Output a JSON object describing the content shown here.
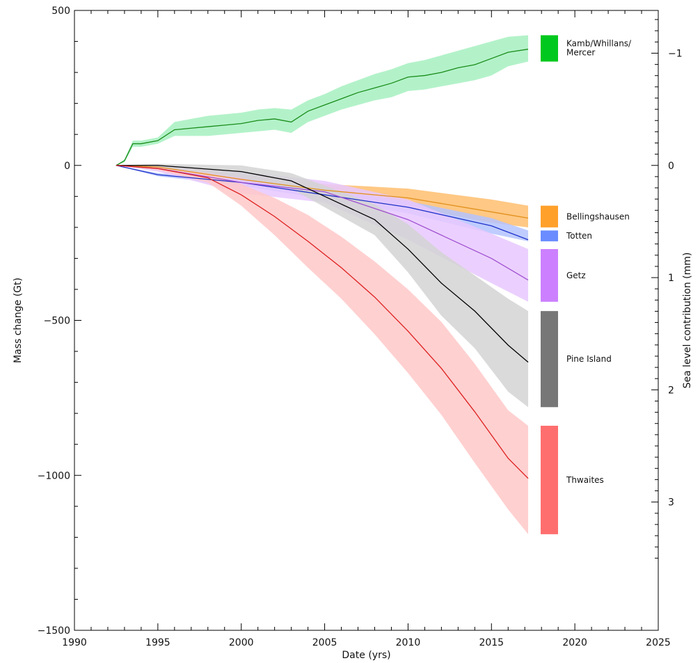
{
  "chart_data": {
    "type": "line",
    "title": "",
    "xlabel": "Date (yrs)",
    "ylabel": "Mass change (Gt)",
    "y2label": "Sea level contribution (mm)",
    "xlim": [
      1990,
      2025
    ],
    "ylim": [
      -1500,
      500
    ],
    "x_ticks": [
      1990,
      1995,
      2000,
      2005,
      2010,
      2015,
      2020,
      2025
    ],
    "y_ticks": [
      500,
      0,
      -500,
      -1000,
      -1500
    ],
    "y2_ticks": [
      -1,
      0,
      1,
      2,
      3
    ],
    "y2_per_gt": -0.002762,
    "grid": false,
    "legend_position": "right",
    "series": [
      {
        "name": "Kamb/Whillans/Mercer",
        "color": "#1a8c1a",
        "band_color": "#a6f0c0",
        "legend_color": "#00c81e",
        "x": [
          1992.5,
          1993,
          1993.5,
          1994,
          1995,
          1996,
          1997,
          1998,
          1999,
          2000,
          2001,
          2002,
          2003,
          2004,
          2005,
          2006,
          2007,
          2008,
          2009,
          2010,
          2011,
          2012,
          2013,
          2014,
          2015,
          2016,
          2017.2
        ],
        "y": [
          0,
          15,
          70,
          70,
          80,
          115,
          120,
          125,
          130,
          135,
          145,
          150,
          140,
          175,
          195,
          215,
          235,
          250,
          265,
          285,
          290,
          300,
          315,
          325,
          345,
          365,
          375
        ],
        "upper": [
          0,
          20,
          80,
          80,
          90,
          140,
          150,
          160,
          165,
          170,
          180,
          185,
          180,
          210,
          230,
          255,
          275,
          295,
          310,
          330,
          340,
          355,
          370,
          385,
          400,
          415,
          420
        ],
        "lower": [
          0,
          10,
          60,
          60,
          70,
          95,
          95,
          95,
          100,
          105,
          110,
          115,
          105,
          140,
          160,
          180,
          195,
          210,
          220,
          240,
          245,
          255,
          265,
          275,
          290,
          320,
          335
        ]
      },
      {
        "name": "Bellingshausen",
        "color": "#e0901a",
        "band_color": "#ffbe6e",
        "legend_color": "#ffa02a",
        "x": [
          1992.5,
          1995,
          2000,
          2005,
          2010,
          2015,
          2017.2
        ],
        "y": [
          0,
          -5,
          -45,
          -80,
          -105,
          -150,
          -170
        ],
        "upper": [
          0,
          0,
          -30,
          -60,
          -75,
          -110,
          -130
        ],
        "lower": [
          0,
          -10,
          -60,
          -100,
          -135,
          -185,
          -200
        ]
      },
      {
        "name": "Totten",
        "color": "#1e32c8",
        "band_color": "#b4c3ff",
        "legend_color": "#6a8cff",
        "x": [
          1992.5,
          1995,
          2000,
          2005,
          2010,
          2015,
          2017.2
        ],
        "y": [
          0,
          -30,
          -55,
          -95,
          -135,
          -195,
          -240
        ],
        "upper": [
          0,
          -25,
          -45,
          -80,
          -115,
          -170,
          -210
        ],
        "lower": [
          0,
          -35,
          -65,
          -110,
          -155,
          -220,
          -245
        ]
      },
      {
        "name": "Getz",
        "color": "#a050d0",
        "band_color": "#e8c8ff",
        "legend_color": "#cc80ff",
        "x": [
          1992.5,
          1995,
          2000,
          2005,
          2010,
          2015,
          2017.2
        ],
        "y": [
          0,
          -10,
          -55,
          -85,
          -175,
          -300,
          -370
        ],
        "upper": [
          0,
          0,
          -20,
          -50,
          -110,
          -220,
          -270
        ],
        "lower": [
          0,
          -20,
          -90,
          -120,
          -240,
          -380,
          -440
        ]
      },
      {
        "name": "Pine Island",
        "color": "#000000",
        "band_color": "#d4d4d4",
        "legend_color": "#777777",
        "x": [
          1992.5,
          1995,
          2000,
          2003,
          2005,
          2008,
          2010,
          2012,
          2014,
          2016,
          2017.2
        ],
        "y": [
          0,
          0,
          -20,
          -50,
          -100,
          -175,
          -270,
          -380,
          -470,
          -580,
          -635
        ],
        "upper": [
          0,
          5,
          0,
          -25,
          -65,
          -125,
          -190,
          -280,
          -355,
          -430,
          -470
        ],
        "lower": [
          0,
          -5,
          -40,
          -75,
          -135,
          -225,
          -345,
          -485,
          -590,
          -730,
          -780
        ]
      },
      {
        "name": "Thwaites",
        "color": "#dd1e1e",
        "band_color": "#ffc8c8",
        "legend_color": "#ff6e6e",
        "x": [
          1992.5,
          1995,
          1998,
          2000,
          2002,
          2004,
          2006,
          2008,
          2010,
          2012,
          2014,
          2016,
          2017.2
        ],
        "y": [
          0,
          -10,
          -40,
          -95,
          -165,
          -245,
          -330,
          -425,
          -535,
          -655,
          -795,
          -945,
          -1010
        ],
        "upper": [
          0,
          -5,
          -25,
          -60,
          -105,
          -160,
          -230,
          -310,
          -400,
          -505,
          -640,
          -790,
          -840
        ],
        "lower": [
          0,
          -15,
          -55,
          -130,
          -225,
          -330,
          -430,
          -545,
          -670,
          -805,
          -960,
          -1110,
          -1190
        ]
      }
    ]
  }
}
